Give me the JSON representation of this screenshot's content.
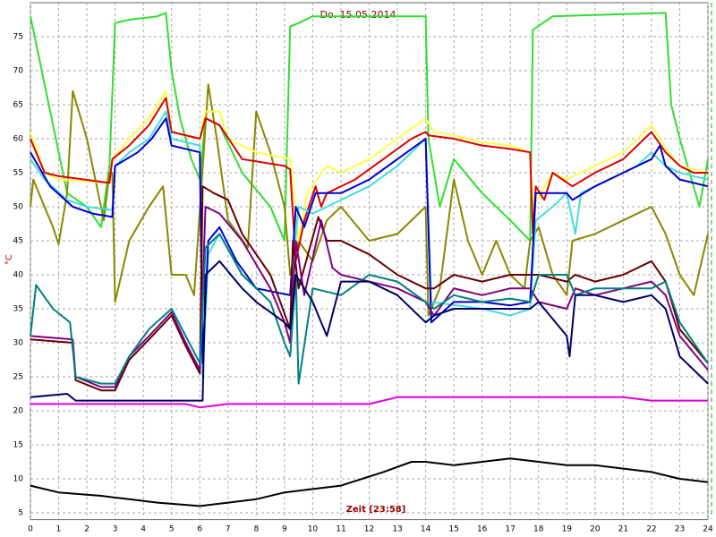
{
  "chart_data": {
    "type": "line",
    "title": "Do. 15.05.2014",
    "xlabel": "Zeit [23:58]",
    "ylabel": "°C",
    "xlim": [
      0,
      24
    ],
    "ylim": [
      4,
      80
    ],
    "xticks": [
      0,
      1,
      2,
      3,
      4,
      5,
      6,
      7,
      8,
      9,
      10,
      11,
      12,
      13,
      14,
      15,
      16,
      17,
      18,
      19,
      20,
      21,
      22,
      23,
      24
    ],
    "yticks": [
      5,
      10,
      15,
      20,
      25,
      30,
      35,
      40,
      45,
      50,
      55,
      60,
      65,
      70,
      75
    ],
    "grid": true,
    "series": [
      {
        "color": "#33dd33",
        "x": [
          0,
          0.5,
          1.3,
          2,
          2.5,
          2.8,
          3.0,
          3.5,
          4.5,
          4.8,
          5.0,
          5.3,
          5.7,
          6.0,
          6.2,
          6.7,
          7.5,
          8.5,
          9.0,
          9.2,
          9.5,
          10,
          14,
          14.1,
          14.5,
          15,
          16,
          17,
          17.7,
          17.8,
          18.5,
          22.5,
          22.7,
          23,
          23.7,
          24
        ],
        "values": [
          78,
          68,
          52,
          50,
          47,
          56,
          77,
          77.5,
          78,
          78.5,
          70,
          63,
          57,
          54,
          63,
          62,
          55,
          50,
          45,
          76.5,
          77,
          78,
          78,
          60,
          50,
          57,
          52,
          48,
          45,
          76,
          78,
          78.5,
          65,
          60,
          50,
          57
        ]
      },
      {
        "color": "#888800",
        "x": [
          0,
          0.1,
          0.8,
          1.0,
          1.3,
          1.5,
          2.0,
          2.6,
          2.8,
          2.9,
          3.0,
          3.5,
          4.2,
          4.7,
          5.0,
          5.5,
          5.8,
          6.3,
          6.6,
          7.0,
          7.7,
          8.0,
          8.5,
          9.0,
          9.2,
          9.5,
          10,
          10.5,
          11,
          12,
          13,
          14,
          14.1,
          14.5,
          15,
          15.5,
          16,
          16.5,
          17,
          17.5,
          17.7,
          18,
          18.5,
          19,
          19.2,
          20,
          21,
          22,
          22.5,
          23,
          23.5,
          24
        ],
        "values": [
          50,
          54,
          47,
          44.5,
          52,
          67,
          60,
          48,
          55,
          55,
          36,
          45,
          50,
          53,
          40,
          40,
          37,
          68,
          60,
          48,
          44,
          64,
          58,
          50,
          40,
          45,
          42,
          48,
          50,
          45,
          46,
          50,
          34,
          38,
          54,
          45,
          40,
          45,
          40,
          38,
          45,
          47,
          40,
          37,
          45,
          46,
          48,
          50,
          46,
          40,
          37,
          46
        ]
      },
      {
        "color": "#ffff44",
        "x": [
          0,
          0.5,
          1,
          2.8,
          2.9,
          3.5,
          4.2,
          4.8,
          5.0,
          6.0,
          6.2,
          6.7,
          7.0,
          8,
          9.2,
          9.5,
          9.8,
          10.5,
          11,
          12,
          13,
          14,
          14.3,
          15,
          16,
          17,
          17.7,
          17.8,
          18.5,
          19,
          20,
          21,
          22,
          22.6,
          23,
          24
        ],
        "values": [
          61,
          55,
          54,
          53.5,
          57,
          60,
          63,
          67,
          61,
          60,
          64,
          64,
          60,
          58,
          57,
          45,
          52,
          56,
          55,
          57,
          60,
          63,
          61,
          60.5,
          59.5,
          59,
          58,
          50,
          55,
          54,
          56,
          58,
          62,
          58,
          56,
          55
        ]
      },
      {
        "color": "#dd0000",
        "x": [
          0,
          0.5,
          1,
          2.8,
          2.9,
          3.5,
          4.2,
          4.8,
          5.0,
          6,
          6.2,
          6.7,
          7.5,
          9,
          9.2,
          9.4,
          9.7,
          10.1,
          10.3,
          10.5,
          11.5,
          12.5,
          13.5,
          14,
          14.1,
          15,
          16,
          17,
          17.7,
          17.8,
          17.9,
          18.2,
          18.5,
          19.2,
          20,
          21,
          22,
          22.5,
          23,
          23.5,
          24
        ],
        "values": [
          60,
          55,
          54.5,
          53.5,
          57,
          59,
          62,
          66,
          61,
          60,
          63,
          62,
          57,
          56,
          55.5,
          42,
          48,
          53,
          50,
          52,
          54,
          57,
          60,
          61,
          60.5,
          60,
          59,
          58.5,
          58,
          46,
          53,
          51,
          55,
          53,
          55,
          57,
          61,
          58,
          56,
          55,
          55
        ]
      },
      {
        "color": "#44dddd",
        "x": [
          0,
          0.5,
          1.3,
          2.0,
          2.9,
          3.0,
          3.5,
          4.2,
          4.8,
          5.0,
          6,
          6.1,
          6.3,
          6.7,
          7.5,
          8,
          9.2,
          9.5,
          10,
          10.5,
          11,
          12,
          13,
          14,
          14.2,
          16,
          17,
          17.7,
          17.9,
          18.5,
          19,
          19.3,
          19.5,
          20.5,
          21.5,
          22,
          22.5,
          23,
          24
        ],
        "values": [
          57,
          54,
          51,
          50,
          49.5,
          56,
          58,
          60,
          64,
          60,
          59,
          25,
          43,
          46,
          40,
          38,
          37,
          50,
          49,
          50,
          51,
          53,
          56,
          60,
          36,
          35,
          34,
          35,
          48,
          50,
          52,
          46,
          52,
          54,
          56,
          58,
          56,
          55,
          54
        ]
      },
      {
        "color": "#0000cc",
        "x": [
          0,
          0.7,
          1.5,
          2.2,
          2.9,
          3.0,
          3.8,
          4.3,
          4.8,
          5.0,
          6.0,
          6.1,
          6.3,
          6.7,
          7.3,
          8,
          9.2,
          9.4,
          9.7,
          10.1,
          11,
          12,
          13,
          14,
          14.2,
          15,
          16,
          17,
          17.7,
          17.9,
          19,
          19.2,
          20,
          21,
          22,
          22.3,
          22.5,
          23,
          24
        ],
        "values": [
          58,
          53,
          50,
          49,
          48.5,
          56,
          58,
          60,
          63,
          59,
          58,
          27,
          45,
          47,
          42,
          38,
          37,
          50,
          47,
          52,
          52,
          54,
          57,
          60,
          33,
          36,
          36,
          35.5,
          36,
          52,
          52,
          51,
          53,
          55,
          57,
          59,
          56,
          54,
          53
        ]
      },
      {
        "color": "#660000",
        "x": [
          0,
          1.5,
          1.6,
          2.5,
          3,
          3.5,
          4.2,
          5,
          5.5,
          6,
          6.1,
          6.5,
          7,
          7.5,
          8.5,
          9.2,
          9.3,
          9.5,
          10.2,
          10.5,
          11,
          12,
          13,
          14,
          14.3,
          15,
          16,
          17,
          17.7,
          18,
          19,
          19.3,
          20,
          21,
          22,
          22.5,
          23,
          24
        ],
        "values": [
          30.5,
          30,
          24.5,
          23,
          23,
          27.5,
          30.5,
          34,
          29.5,
          25.5,
          53,
          52,
          51,
          46,
          40,
          32,
          45,
          38,
          48.5,
          45,
          45,
          43,
          40,
          38,
          38,
          40,
          39,
          40,
          40,
          40,
          39,
          40,
          39,
          40,
          42,
          39,
          32,
          27
        ]
      },
      {
        "color": "#800080",
        "x": [
          0,
          1.5,
          1.6,
          2.5,
          3,
          3.5,
          4.2,
          5,
          5.5,
          6,
          6.2,
          6.7,
          7.5,
          8.5,
          9,
          9.2,
          9.4,
          9.7,
          10.3,
          10.7,
          11,
          13,
          14,
          14.3,
          15,
          16,
          17,
          17.7,
          18,
          19,
          19.3,
          20,
          21,
          22,
          22.5,
          23,
          24
        ],
        "values": [
          31,
          30.5,
          25,
          23.5,
          23.5,
          28,
          31,
          34.5,
          30,
          26,
          50,
          49,
          45,
          38,
          33,
          30,
          45,
          37,
          48,
          41,
          40,
          38,
          36,
          34,
          38,
          37,
          38,
          38,
          36,
          35,
          38,
          37,
          38,
          39,
          37,
          31,
          26
        ]
      },
      {
        "color": "#008080",
        "x": [
          0,
          0.2,
          0.8,
          1.4,
          1.6,
          2.5,
          3,
          3.5,
          4.2,
          5,
          5.5,
          6,
          6.2,
          6.7,
          7.5,
          8.5,
          9,
          9.2,
          9.4,
          9.5,
          10,
          11,
          12,
          13,
          14,
          14.3,
          15,
          16,
          17,
          17.7,
          18,
          19,
          19.3,
          20,
          21,
          22,
          22.5,
          23,
          24
        ],
        "values": [
          31,
          38.5,
          35,
          33,
          25,
          24,
          24,
          28,
          32,
          35,
          31,
          27,
          44,
          46,
          40,
          36,
          30,
          28,
          40,
          24,
          38,
          37,
          40,
          39,
          36,
          35,
          37,
          36,
          36.5,
          36,
          40,
          40,
          37,
          38,
          38,
          38,
          39,
          33,
          27
        ]
      },
      {
        "color": "#000066",
        "x": [
          0,
          1.3,
          1.6,
          6.1,
          6.2,
          6.7,
          7.5,
          8,
          9,
          9.2,
          9.4,
          10,
          10.5,
          11,
          12,
          13,
          14,
          14.3,
          15,
          16,
          17,
          17.7,
          18,
          19,
          19.1,
          19.3,
          20,
          21,
          22,
          22.5,
          23,
          24
        ],
        "values": [
          22,
          22.5,
          21.5,
          21.5,
          40,
          42,
          38,
          36,
          33,
          32,
          40,
          36,
          31,
          39,
          39,
          37,
          33,
          34,
          35,
          35,
          35,
          35,
          36,
          31,
          28,
          37,
          37,
          36,
          37,
          35,
          28,
          24
        ]
      },
      {
        "color": "#dd00dd",
        "x": [
          0,
          5.5,
          6,
          7,
          10,
          12,
          13,
          18,
          21,
          22,
          24
        ],
        "values": [
          21,
          21,
          20.5,
          21,
          21,
          21,
          22,
          22,
          22,
          21.5,
          21.5
        ]
      },
      {
        "color": "#000000",
        "x": [
          0,
          1,
          2.5,
          3.5,
          4.5,
          6,
          7,
          8,
          9,
          10,
          11,
          12.5,
          13.5,
          14,
          15,
          16,
          17,
          18,
          19,
          20,
          21,
          22,
          23,
          24
        ],
        "values": [
          9,
          8,
          7.5,
          7,
          6.5,
          6,
          6.5,
          7,
          8,
          8.5,
          9,
          11,
          12.5,
          12.5,
          12,
          12.5,
          13,
          12.5,
          12,
          12,
          11.5,
          11,
          10,
          9.5
        ]
      }
    ]
  }
}
